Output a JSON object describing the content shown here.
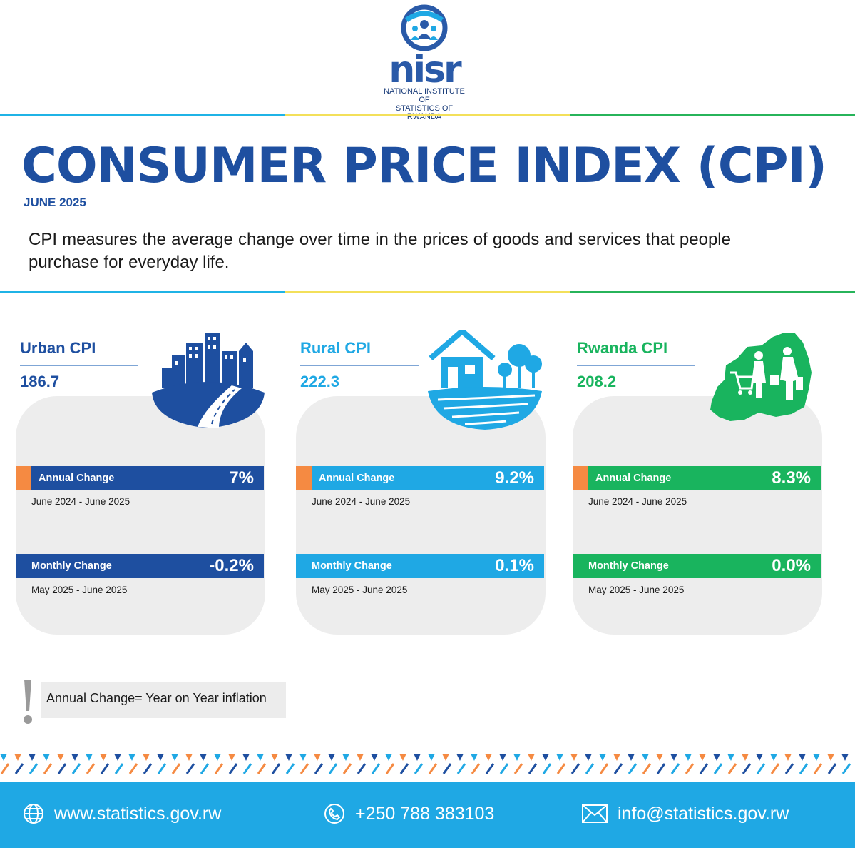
{
  "header": {
    "logo_word": "nisr",
    "logo_sub_line1": "NATIONAL INSTITUTE OF",
    "logo_sub_line2": "STATISTICS OF RWANDA"
  },
  "title": "CONSUMER PRICE INDEX (CPI)",
  "subtitle": "JUNE 2025",
  "description": "CPI measures the average change over time in the prices of goods and services that people purchase for everyday life.",
  "cards": [
    {
      "name": "Urban CPI",
      "value": "186.7",
      "annual_label": "Annual Change",
      "annual_value": "7%",
      "annual_period": "June 2024 - June 2025",
      "monthly_label": "Monthly Change",
      "monthly_value": "-0.2%",
      "monthly_period": "May 2025 - June 2025",
      "color": "#1e4fa0",
      "icon": "city-road-icon"
    },
    {
      "name": "Rural CPI",
      "value": "222.3",
      "annual_label": "Annual Change",
      "annual_value": "9.2%",
      "annual_period": "June 2024 - June 2025",
      "monthly_label": "Monthly Change",
      "monthly_value": "0.1%",
      "monthly_period": "May 2025 - June 2025",
      "color": "#1fa8e4",
      "icon": "farmhouse-icon"
    },
    {
      "name": "Rwanda CPI",
      "value": "208.2",
      "annual_label": "Annual Change",
      "annual_value": "8.3%",
      "annual_period": "June 2024 - June 2025",
      "monthly_label": "Monthly Change",
      "monthly_value": "0.0%",
      "monthly_period": "May 2025 - June 2025",
      "color": "#19b45e",
      "icon": "rwanda-map-shoppers-icon"
    }
  ],
  "note": "Annual Change= Year on Year inflation",
  "footer": {
    "website": "www.statistics.gov.rw",
    "phone": "+250 788 383103",
    "email": "info@statistics.gov.rw"
  },
  "colors": {
    "accent_orange": "#f58a42",
    "footer_blue": "#1fa8e4",
    "title_blue": "#1e4fa0"
  }
}
